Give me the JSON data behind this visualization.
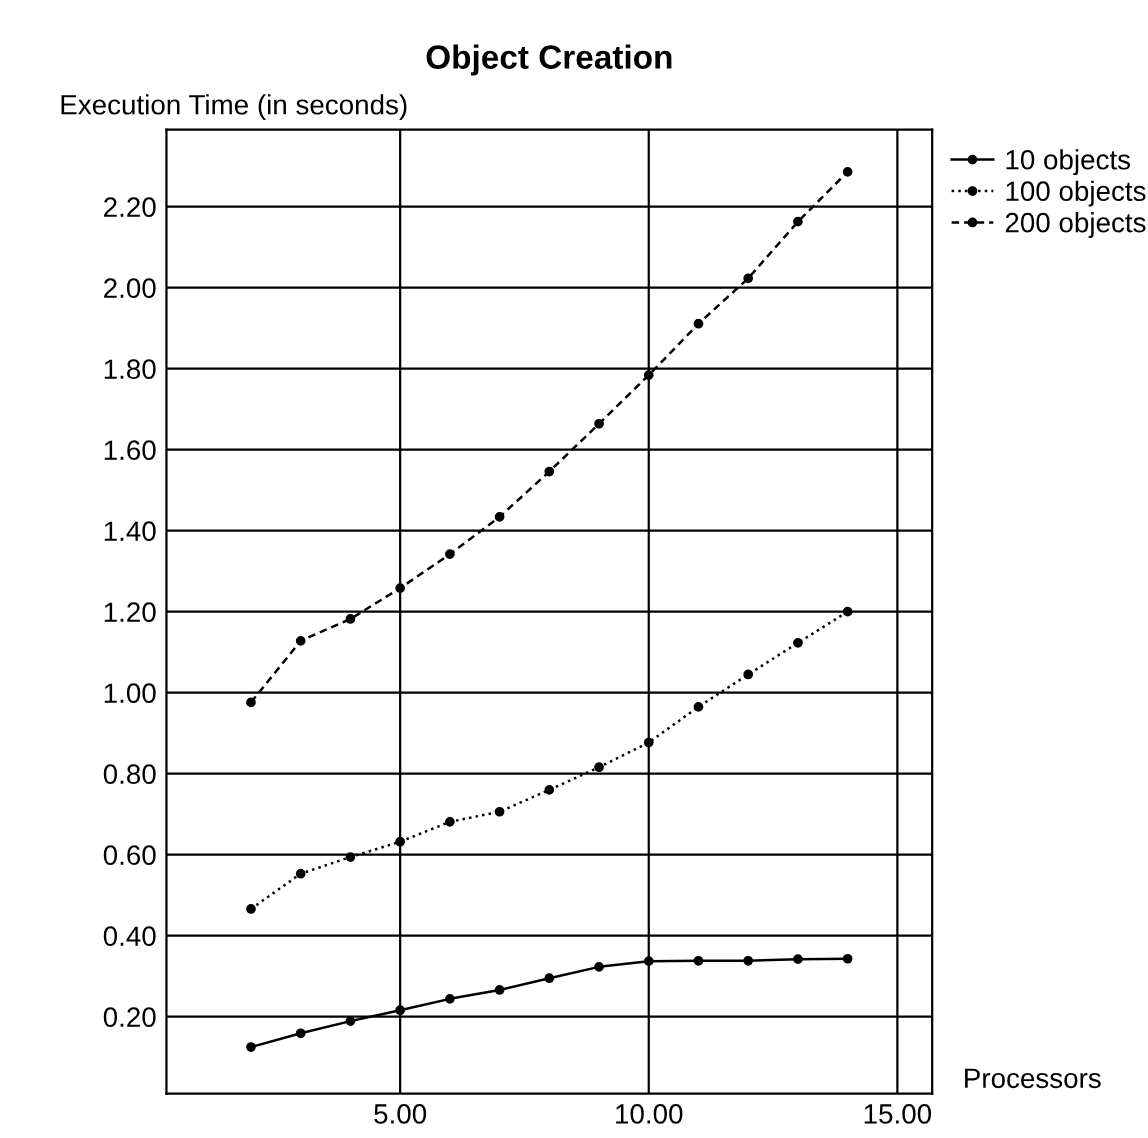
{
  "chart_data": {
    "type": "line",
    "title": "Object Creation",
    "xlabel": "Processors",
    "ylabel": "Execution Time (in seconds)",
    "x": [
      2,
      3,
      4,
      5,
      6,
      7,
      8,
      9,
      10,
      11,
      12,
      13,
      14
    ],
    "series": [
      {
        "name": "10 objects",
        "color": "#000000",
        "line_style": "solid",
        "values": [
          0.125,
          0.159,
          0.189,
          0.216,
          0.244,
          0.266,
          0.295,
          0.323,
          0.337,
          0.338,
          0.338,
          0.342,
          0.343
        ]
      },
      {
        "name": "100 objects",
        "color": "#000000",
        "line_style": "dotted",
        "values": [
          0.466,
          0.553,
          0.594,
          0.632,
          0.681,
          0.706,
          0.76,
          0.816,
          0.877,
          0.965,
          1.045,
          1.123,
          1.2
        ]
      },
      {
        "name": "200 objects",
        "color": "#000000",
        "line_style": "dashed",
        "values": [
          0.976,
          1.128,
          1.182,
          1.258,
          1.342,
          1.434,
          1.546,
          1.664,
          1.784,
          1.911,
          2.023,
          2.163,
          2.286
        ]
      }
    ],
    "xlim": [
      0.3,
      15.7
    ],
    "ylim": [
      0.01,
      2.39
    ],
    "xticks": [
      {
        "value": 5,
        "label": "5.00"
      },
      {
        "value": 10,
        "label": "10.00"
      },
      {
        "value": 15,
        "label": "15.00"
      }
    ],
    "yticks": [
      {
        "value": 0.2,
        "label": "0.20"
      },
      {
        "value": 0.4,
        "label": "0.40"
      },
      {
        "value": 0.6,
        "label": "0.60"
      },
      {
        "value": 0.8,
        "label": "0.80"
      },
      {
        "value": 1.0,
        "label": "1.00"
      },
      {
        "value": 1.2,
        "label": "1.20"
      },
      {
        "value": 1.4,
        "label": "1.40"
      },
      {
        "value": 1.6,
        "label": "1.60"
      },
      {
        "value": 1.8,
        "label": "1.80"
      },
      {
        "value": 2.0,
        "label": "2.00"
      },
      {
        "value": 2.2,
        "label": "2.20"
      }
    ],
    "grid": true,
    "legend": "top right",
    "marker": "circle"
  }
}
